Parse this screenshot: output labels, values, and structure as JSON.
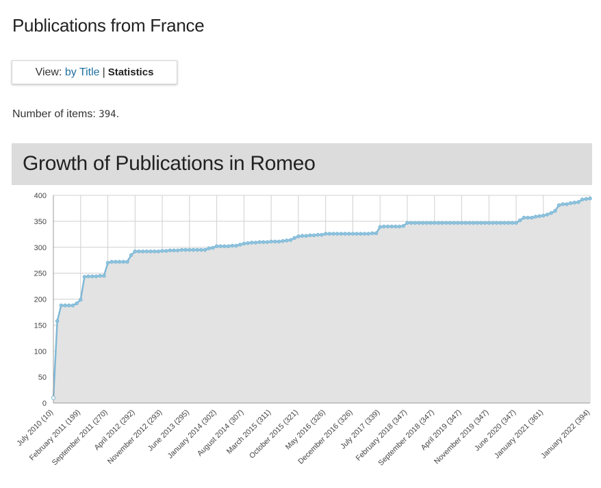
{
  "page": {
    "title": "Publications from France",
    "view_label": "View:",
    "view_by_title": "by Title",
    "view_separator": "|",
    "view_statistics": "Statistics",
    "count_label": "Number of items:",
    "count_value": "394",
    "count_suffix": "."
  },
  "chart_header": "Growth of Publications in Romeo",
  "colors": {
    "line": "#7fb8d6",
    "point": "#8fc4de",
    "area": "#e3e3e3",
    "grid": "#cfcfcf"
  },
  "chart_data": {
    "type": "area",
    "title": "Growth of Publications in Romeo",
    "ylim": [
      0,
      400
    ],
    "yticks": [
      0,
      50,
      100,
      150,
      200,
      250,
      300,
      350,
      400
    ],
    "grid": true,
    "start_month": "July 2010",
    "x_tick_labels": [
      "July 2010 (10)",
      "February 2011 (199)",
      "September 2011 (270)",
      "April 2012 (292)",
      "November 2012 (293)",
      "June 2013 (295)",
      "January 2014 (302)",
      "August 2014 (307)",
      "March 2015 (311)",
      "October 2015 (321)",
      "May 2016 (326)",
      "December 2016 (326)",
      "July 2017 (339)",
      "February 2018 (347)",
      "September 2018 (347)",
      "April 2019 (347)",
      "November 2019 (347)",
      "June 2020 (347)",
      "January 2021 (361)",
      "January 2022 (394)"
    ],
    "x_tick_month_index": [
      0,
      7,
      14,
      21,
      28,
      35,
      42,
      49,
      56,
      63,
      70,
      77,
      84,
      91,
      98,
      105,
      112,
      119,
      126,
      138
    ],
    "values": [
      10,
      158,
      188,
      188,
      188,
      188,
      192,
      199,
      243,
      244,
      244,
      244,
      245,
      245,
      270,
      272,
      272,
      272,
      272,
      272,
      285,
      292,
      292,
      292,
      292,
      292,
      292,
      292,
      293,
      293,
      294,
      294,
      294,
      295,
      295,
      295,
      295,
      295,
      295,
      295,
      298,
      299,
      302,
      302,
      302,
      302,
      303,
      303,
      305,
      307,
      308,
      309,
      309,
      310,
      310,
      310,
      311,
      311,
      311,
      312,
      313,
      314,
      318,
      321,
      322,
      322,
      323,
      323,
      324,
      324,
      326,
      326,
      326,
      326,
      326,
      326,
      326,
      326,
      326,
      326,
      326,
      326,
      327,
      327,
      339,
      340,
      340,
      340,
      340,
      340,
      341,
      347,
      347,
      347,
      347,
      347,
      347,
      347,
      347,
      347,
      347,
      347,
      347,
      347,
      347,
      347,
      347,
      347,
      347,
      347,
      347,
      347,
      347,
      347,
      347,
      347,
      347,
      347,
      347,
      347,
      352,
      357,
      357,
      357,
      359,
      360,
      361,
      363,
      366,
      370,
      381,
      383,
      383,
      385,
      386,
      387,
      392,
      393,
      394
    ]
  }
}
